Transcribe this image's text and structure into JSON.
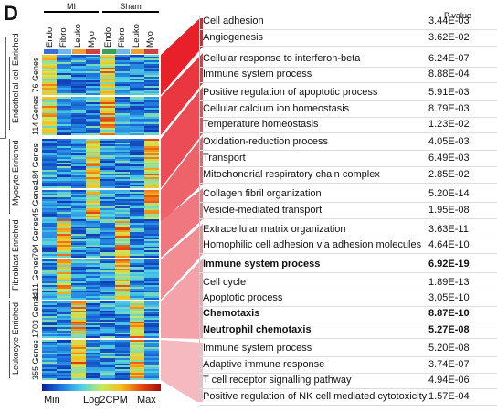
{
  "panel_letter": "D",
  "groups": [
    {
      "label": "MI"
    },
    {
      "label": "Sham"
    }
  ],
  "columns": [
    "Endo",
    "Fibro",
    "Leuko",
    "Myo",
    "Endo",
    "Fibro",
    "Leuko",
    "Myo"
  ],
  "column_colors": [
    "#3b6fd8",
    "#6fb7e8",
    "#f0a030",
    "#d04040",
    "#3aa060",
    "#6fb7e8",
    "#f0a030",
    "#d04040"
  ],
  "clusters": [
    {
      "genes": "76 Genes"
    },
    {
      "genes": "114 Genes"
    },
    {
      "genes": "184 Genes"
    },
    {
      "genes": "45 Genes"
    },
    {
      "genes": "794 Genes"
    },
    {
      "genes": "1111 Genes"
    },
    {
      "genes": "1703 Genes"
    },
    {
      "genes": "355 Genes"
    }
  ],
  "enriched_labels": [
    "Endothelial cell Enriched",
    "Myocyte Enriched",
    "Fibroblast Enriched",
    "Leukocyte Enriched"
  ],
  "pvalue_header": "P value",
  "terms": [
    {
      "term": "Cell adhesion",
      "p": "3.44E-03",
      "bold": false
    },
    {
      "term": "Angiogenesis",
      "p": "3.62E-02",
      "bold": false
    },
    {
      "term": "Cellular response to interferon-beta",
      "p": "6.24E-07",
      "bold": false
    },
    {
      "term": "Immune system process",
      "p": "8.88E-04",
      "bold": false
    },
    {
      "term": "Positive regulation of apoptotic process",
      "p": "5.91E-03",
      "bold": false
    },
    {
      "term": "Cellular calcium ion homeostasis",
      "p": "8.79E-03",
      "bold": false
    },
    {
      "term": "Temperature homeostasis",
      "p": "1.23E-02",
      "bold": false
    },
    {
      "term": "Oxidation-reduction process",
      "p": "4.05E-03",
      "bold": false
    },
    {
      "term": "Transport",
      "p": "6.49E-03",
      "bold": false
    },
    {
      "term": "Mitochondrial respiratory chain complex",
      "p": "2.85E-02",
      "bold": false
    },
    {
      "term": "Collagen fibril organization",
      "p": "5.20E-14",
      "bold": false
    },
    {
      "term": "Vesicle-mediated transport",
      "p": "1.95E-08",
      "bold": false
    },
    {
      "term": "Extracellular matrix organization",
      "p": "3.63E-11",
      "bold": false
    },
    {
      "term": "Homophilic cell adhesion via adhesion molecules",
      "p": "4.64E-10",
      "bold": false
    },
    {
      "term": "Immune system process",
      "p": "6.92E-19",
      "bold": true
    },
    {
      "term": "Cell cycle",
      "p": "1.89E-13",
      "bold": false
    },
    {
      "term": "Apoptotic process",
      "p": "3.05E-10",
      "bold": false
    },
    {
      "term": "Chemotaxis",
      "p": "8.87E-10",
      "bold": true
    },
    {
      "term": "Neutrophil chemotaxis",
      "p": "5.27E-08",
      "bold": true
    },
    {
      "term": "Immune system process",
      "p": "5.20E-08",
      "bold": false
    },
    {
      "term": "Adaptive immune response",
      "p": "3.74E-07",
      "bold": false
    },
    {
      "term": "T cell receptor signalling pathway",
      "p": "4.94E-06",
      "bold": false
    },
    {
      "term": "Positive regulation of NK cell mediated cytotoxicity",
      "p": "1.57E-04",
      "bold": false
    }
  ],
  "legend": {
    "min": "Min",
    "mid": "Log2CPM",
    "max": "Max"
  },
  "colors": {
    "wedge_dark": "#e8202a",
    "wedge_light": "#f6b9bf"
  }
}
